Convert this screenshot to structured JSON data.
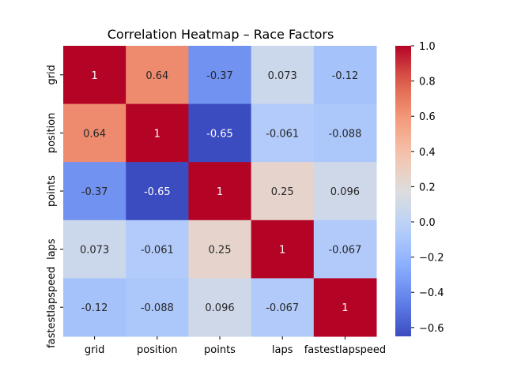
{
  "chart_data": {
    "type": "heatmap",
    "title": "Correlation Heatmap – Race Factors",
    "xlabel": "",
    "ylabel": "",
    "x_categories": [
      "grid",
      "position",
      "points",
      "laps",
      "fastestlapspeed"
    ],
    "y_categories": [
      "grid",
      "position",
      "points",
      "laps",
      "fastestlapspeed"
    ],
    "values": [
      [
        1,
        0.64,
        -0.37,
        0.073,
        -0.12
      ],
      [
        0.64,
        1,
        -0.65,
        -0.061,
        -0.088
      ],
      [
        -0.37,
        -0.65,
        1,
        0.25,
        0.096
      ],
      [
        0.073,
        -0.061,
        0.25,
        1,
        -0.067
      ],
      [
        -0.12,
        -0.088,
        0.096,
        -0.067,
        1
      ]
    ],
    "annotations": [
      [
        "1",
        "0.64",
        "-0.37",
        "0.073",
        "-0.12"
      ],
      [
        "0.64",
        "1",
        "-0.65",
        "-0.061",
        "-0.088"
      ],
      [
        "-0.37",
        "-0.65",
        "1",
        "0.25",
        "0.096"
      ],
      [
        "0.073",
        "-0.061",
        "0.25",
        "1",
        "-0.067"
      ],
      [
        "-0.12",
        "-0.088",
        "0.096",
        "-0.067",
        "1"
      ]
    ],
    "colormap": "coolwarm",
    "vmin": -0.65,
    "vmax": 1.0,
    "colorbar_ticks": [
      "1.0",
      "0.8",
      "0.6",
      "0.4",
      "0.2",
      "0.0",
      "−0.2",
      "−0.4",
      "−0.6"
    ],
    "colorbar_tick_values": [
      1.0,
      0.8,
      0.6,
      0.4,
      0.2,
      0.0,
      -0.2,
      -0.4,
      -0.6
    ],
    "grid": false,
    "legend": "colorbar-right"
  }
}
